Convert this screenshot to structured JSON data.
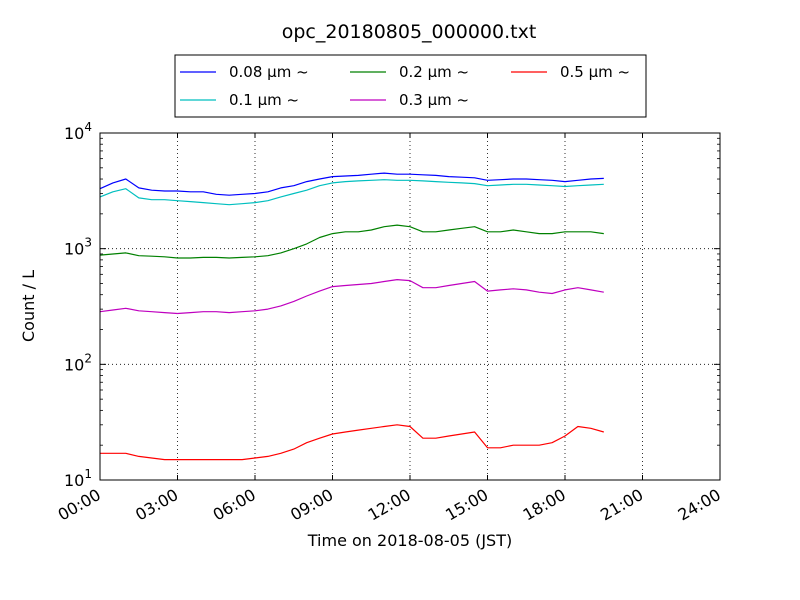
{
  "chart_data": {
    "type": "line",
    "title": "opc_20180805_000000.txt",
    "xlabel": "Time on 2018-08-05 (JST)",
    "ylabel": "Count / L",
    "y_scale": "log",
    "ylim": [
      10,
      10000
    ],
    "xlim": [
      "00:00",
      "24:00"
    ],
    "x_unit": "hours",
    "x_ticks": [
      "00:00",
      "03:00",
      "06:00",
      "09:00",
      "12:00",
      "15:00",
      "18:00",
      "21:00",
      "24:00"
    ],
    "y_ticks": [
      {
        "value": 10,
        "base": "10",
        "exp": "1"
      },
      {
        "value": 100,
        "base": "10",
        "exp": "2"
      },
      {
        "value": 1000,
        "base": "10",
        "exp": "3"
      },
      {
        "value": 10000,
        "base": "10",
        "exp": "4"
      }
    ],
    "grid": true,
    "legend_position": "top-center",
    "x": [
      0,
      0.5,
      1,
      1.5,
      2,
      2.5,
      3,
      3.5,
      4,
      4.5,
      5,
      5.5,
      6,
      6.5,
      7,
      7.5,
      8,
      8.5,
      9,
      9.5,
      10,
      10.5,
      11,
      11.5,
      12,
      12.5,
      13,
      13.5,
      14,
      14.5,
      15,
      15.5,
      16,
      16.5,
      17,
      17.5,
      18,
      18.5,
      19,
      19.5
    ],
    "series": [
      {
        "name": "0.08 μm ~",
        "color": "#0000ff",
        "values": [
          3300,
          3700,
          4000,
          3350,
          3200,
          3150,
          3150,
          3100,
          3100,
          2950,
          2900,
          2950,
          3000,
          3100,
          3350,
          3500,
          3800,
          4000,
          4200,
          4250,
          4300,
          4400,
          4500,
          4400,
          4400,
          4350,
          4300,
          4200,
          4150,
          4100,
          3900,
          3950,
          4000,
          4000,
          3950,
          3900,
          3800,
          3900,
          4000,
          4050
        ]
      },
      {
        "name": "0.1 μm ~",
        "color": "#00bfbf",
        "values": [
          2800,
          3100,
          3300,
          2750,
          2650,
          2650,
          2600,
          2550,
          2500,
          2450,
          2400,
          2450,
          2500,
          2600,
          2800,
          3000,
          3200,
          3500,
          3700,
          3800,
          3850,
          3900,
          3950,
          3900,
          3900,
          3850,
          3800,
          3750,
          3700,
          3650,
          3500,
          3550,
          3600,
          3600,
          3550,
          3500,
          3450,
          3500,
          3550,
          3600
        ]
      },
      {
        "name": "0.2 μm ~",
        "color": "#008000",
        "values": [
          880,
          900,
          920,
          870,
          860,
          850,
          830,
          830,
          840,
          840,
          830,
          840,
          850,
          870,
          920,
          1000,
          1100,
          1250,
          1350,
          1400,
          1400,
          1450,
          1550,
          1600,
          1550,
          1400,
          1400,
          1450,
          1500,
          1550,
          1400,
          1400,
          1450,
          1400,
          1350,
          1350,
          1400,
          1400,
          1400,
          1350
        ]
      },
      {
        "name": "0.3 μm ~",
        "color": "#bf00bf",
        "values": [
          285,
          295,
          305,
          290,
          285,
          280,
          275,
          280,
          285,
          285,
          280,
          285,
          290,
          300,
          320,
          350,
          390,
          430,
          470,
          480,
          490,
          500,
          520,
          540,
          530,
          460,
          460,
          480,
          500,
          520,
          430,
          440,
          450,
          440,
          420,
          410,
          440,
          460,
          440,
          420
        ]
      },
      {
        "name": "0.5 μm ~",
        "color": "#ff0000",
        "values": [
          17,
          17,
          17,
          16,
          15.5,
          15,
          15,
          15,
          15,
          15,
          15,
          15,
          15.5,
          16,
          17,
          18.5,
          21,
          23,
          25,
          26,
          27,
          28,
          29,
          30,
          29,
          23,
          23,
          24,
          25,
          26,
          19,
          19,
          20,
          20,
          20,
          21,
          24,
          29,
          28,
          26
        ]
      }
    ]
  }
}
